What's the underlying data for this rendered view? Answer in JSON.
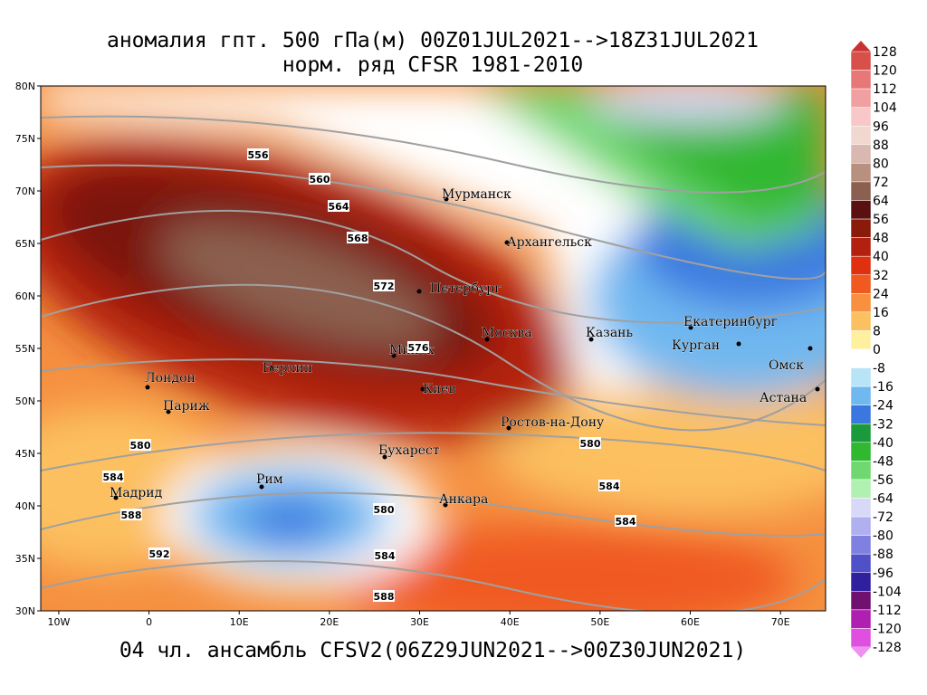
{
  "header": {
    "title": [
      "аномалия гпт. 500 гПа(м) 00Z01JUL2021-->18Z31JUL2021",
      "норм. ряд CFSR 1981-2010"
    ]
  },
  "map": {
    "xticks": [
      {
        "value": -10,
        "label": "10W"
      },
      0,
      {
        "value": 10,
        "label": "10E"
      },
      {
        "value": 20,
        "label": "20E"
      },
      {
        "value": 30,
        "label": "30E"
      },
      {
        "value": 40,
        "label": "40E"
      },
      {
        "value": 50,
        "label": "50E"
      },
      {
        "value": 60,
        "label": "60E"
      },
      {
        "value": 70,
        "label": "70E"
      }
    ],
    "xlim": [
      -12,
      75
    ],
    "yticks": [
      {
        "value": 30,
        "label": "30N"
      },
      {
        "value": 35,
        "label": "35N"
      },
      {
        "value": 40,
        "label": "40N"
      },
      {
        "value": 45,
        "label": "45N"
      },
      {
        "value": 50,
        "label": "50N"
      },
      {
        "value": 55,
        "label": "55N"
      },
      {
        "value": 60,
        "label": "60N"
      },
      {
        "value": 65,
        "label": "65N"
      },
      {
        "value": 70,
        "label": "70N"
      },
      {
        "value": 75,
        "label": "75N"
      },
      {
        "value": 80,
        "label": "80N"
      }
    ],
    "ylim": [
      30,
      80
    ],
    "cities": [
      "Мурманск",
      "Архангельск",
      "Петербург",
      "Москва",
      "Казань",
      "Екатеринбург",
      "Курган",
      "Омск",
      "Астана",
      "Лондон",
      "Париж",
      "Берлин",
      "Минск",
      "Киев",
      "Ростов-на-Дону",
      "Бухарест",
      "Анкара",
      "Рим",
      "Мадрид"
    ],
    "contour_labels": [
      556,
      560,
      564,
      568,
      572,
      576,
      580,
      580,
      584,
      584,
      584,
      584,
      588,
      588,
      592,
      580
    ]
  },
  "colorbar": {
    "labels": [
      128,
      120,
      112,
      104,
      96,
      88,
      80,
      72,
      64,
      56,
      48,
      40,
      32,
      24,
      16,
      8,
      0,
      -8,
      -16,
      -24,
      -32,
      -40,
      -48,
      -56,
      -64,
      -72,
      -80,
      -88,
      -96,
      -104,
      -112,
      -120,
      -128
    ],
    "colors": [
      "#c83232",
      "#d8504a",
      "#e87878",
      "#f0a0a0",
      "#f8c8c8",
      "#f0d8d0",
      "#d8b8b0",
      "#b89080",
      "#8c6050",
      "#5a1010",
      "#8a1a0a",
      "#b42010",
      "#e03010",
      "#f05a20",
      "#f89040",
      "#fcc060",
      "#fff0a0",
      "#ffffff",
      "#b8e4f8",
      "#70b8f0",
      "#3a78e0",
      "#1a9a3a",
      "#30b830",
      "#70d870",
      "#b0f0b0",
      "#d8d8f8",
      "#b0b0f0",
      "#8080e0",
      "#5050c8",
      "#3020a0",
      "#701070",
      "#b020b0",
      "#e050e0",
      "#f090f0"
    ]
  },
  "footer": "04 чл. ансамбль CFSV2(06Z29JUN2021-->00Z30JUN2021)"
}
